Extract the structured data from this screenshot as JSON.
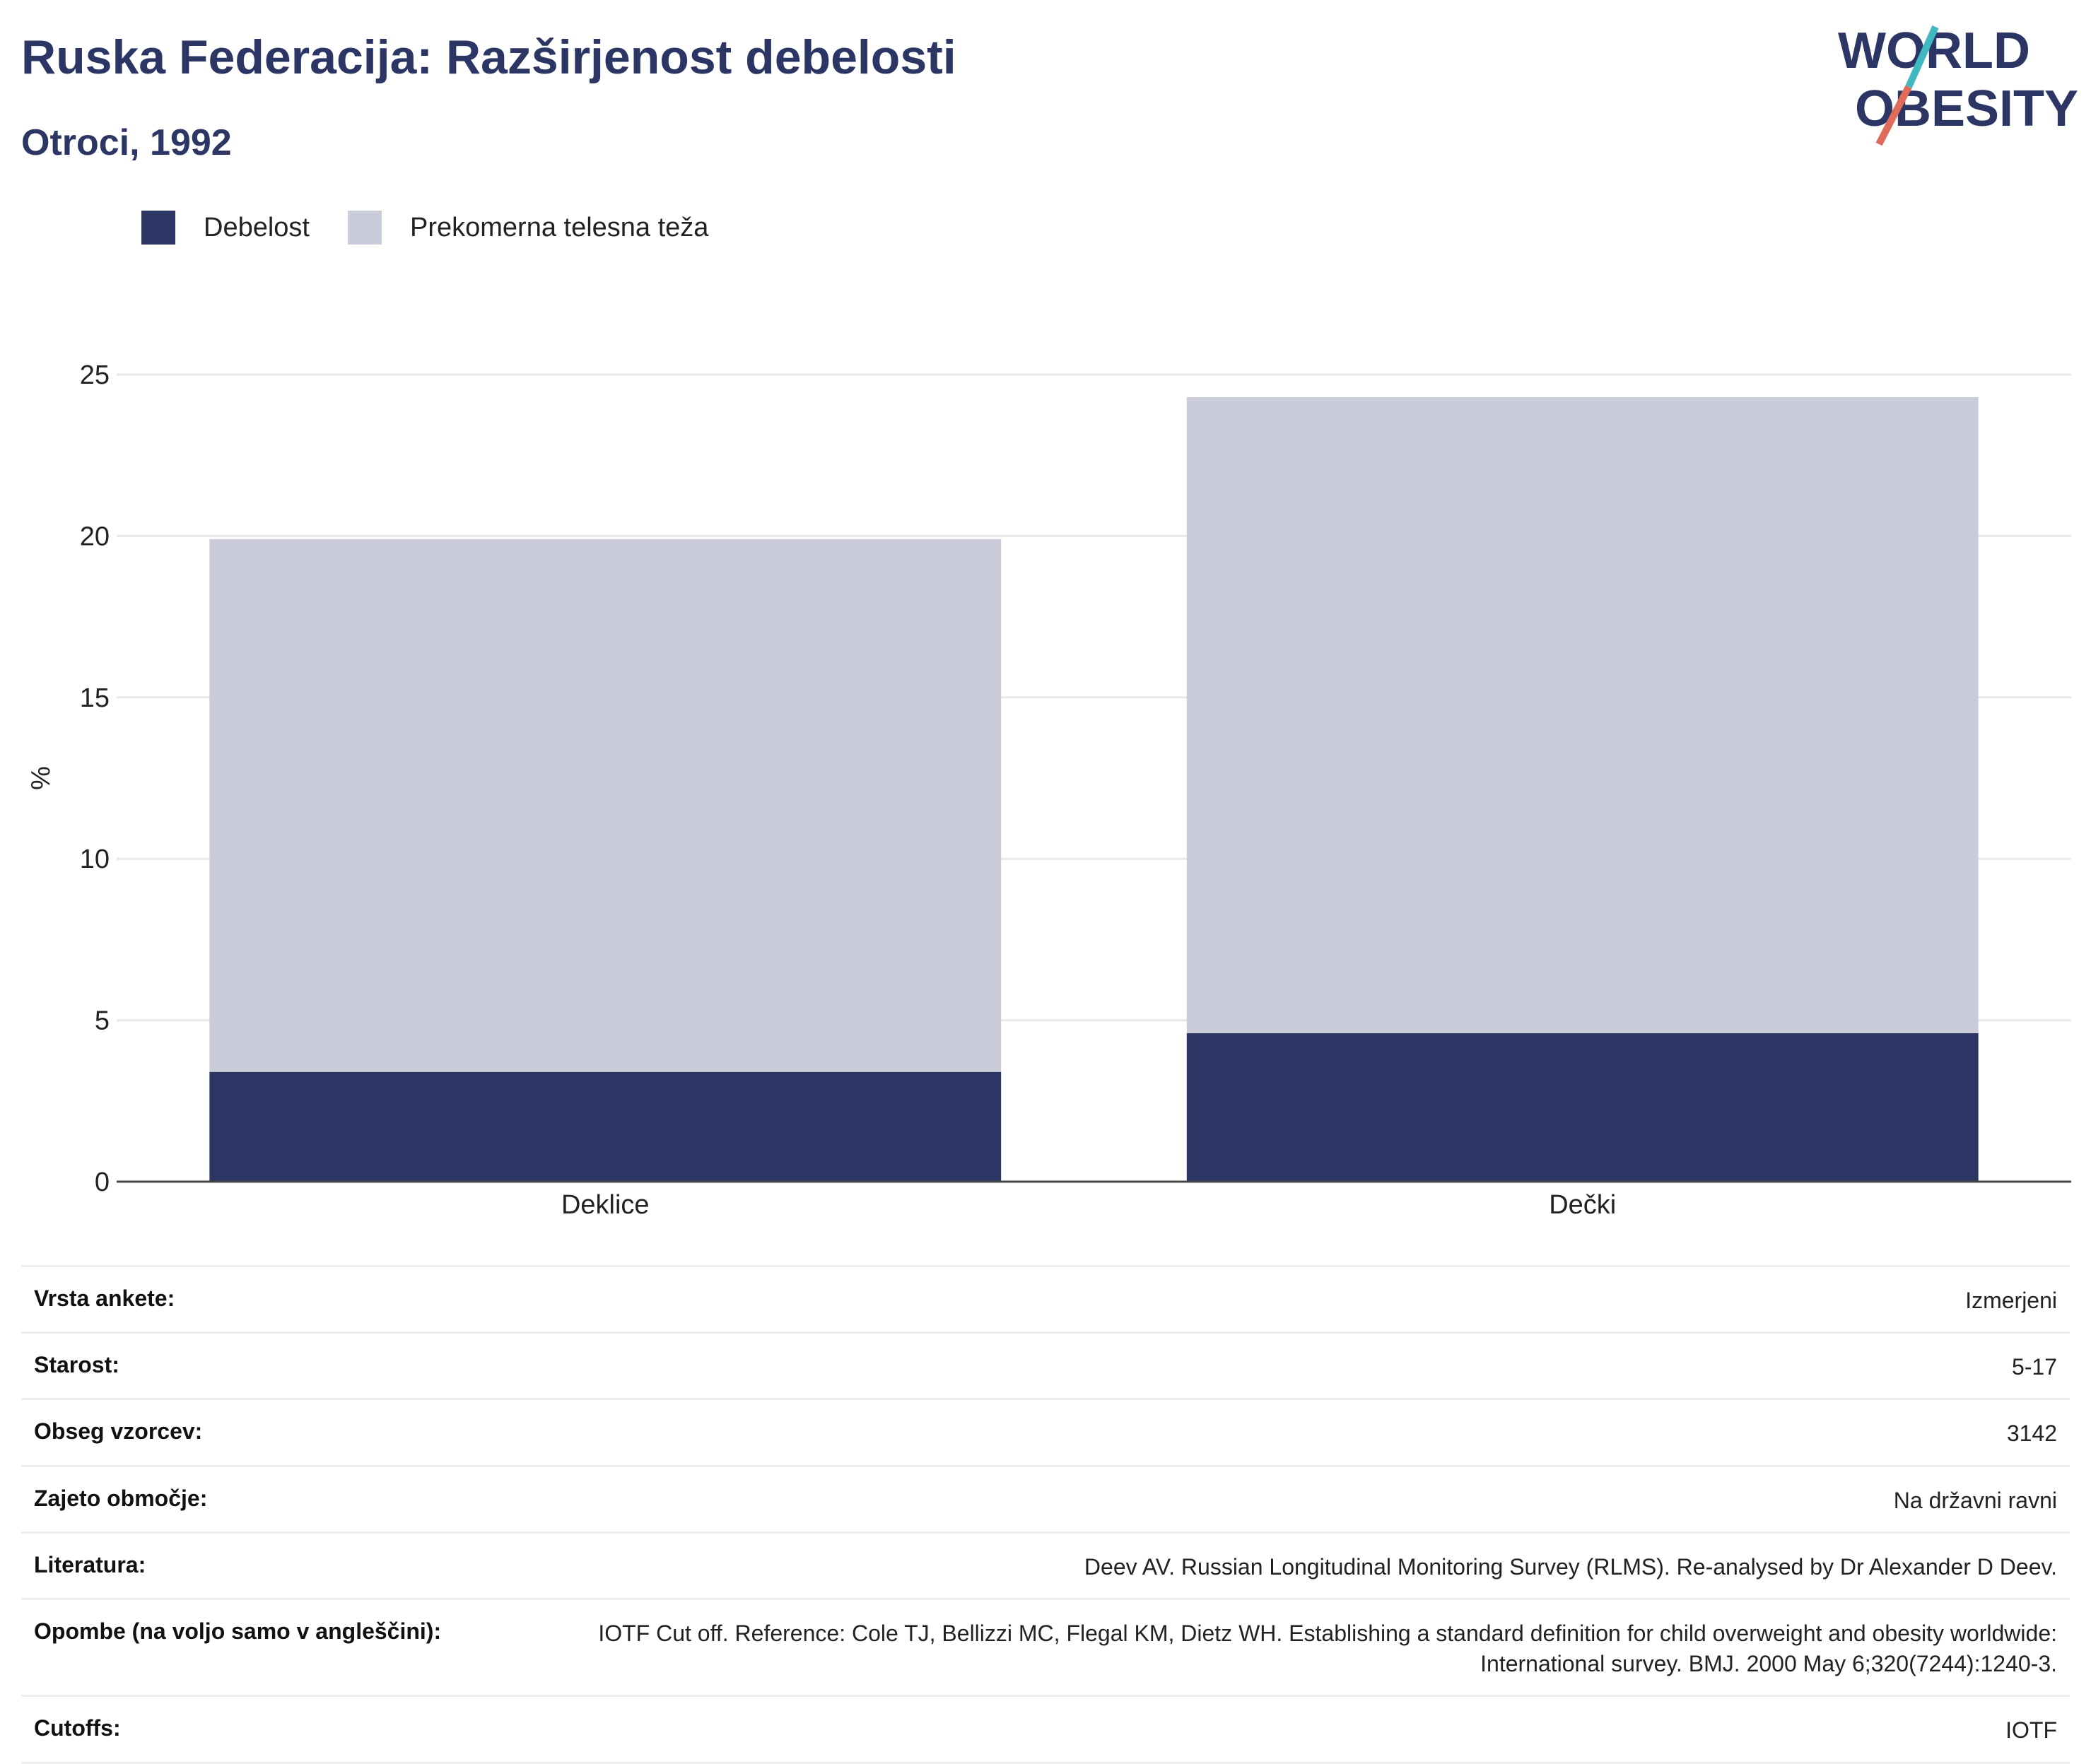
{
  "header": {
    "title": "Ruska Federacija: Razširjenost debelosti",
    "subtitle": "Otroci, 1992"
  },
  "logo": {
    "line1": "WORLD",
    "line2": "OBESITY"
  },
  "colors": {
    "obesity": "#2b3664",
    "overweight": "#cacdd9",
    "title": "#2b3664",
    "logo_teal": "#3fb8c0",
    "logo_coral": "#e06b5b"
  },
  "legend": [
    {
      "label": "Debelost",
      "color": "#2b3664"
    },
    {
      "label": "Prekomerna telesna teža",
      "color": "#cacdd9"
    }
  ],
  "chart_data": {
    "type": "bar",
    "stacked": true,
    "categories": [
      "Deklice",
      "Dečki"
    ],
    "series": [
      {
        "name": "Debelost",
        "values": [
          3.4,
          4.6
        ]
      },
      {
        "name": "Prekomerna telesna teža",
        "values": [
          16.5,
          19.7
        ]
      }
    ],
    "ylabel": "%",
    "ylim": [
      0,
      25
    ],
    "yticks": [
      0,
      5,
      10,
      15,
      20,
      25
    ],
    "grid": true,
    "legend_position": "top-left"
  },
  "info": [
    {
      "key": "Vrsta ankete:",
      "value": "Izmerjeni"
    },
    {
      "key": "Starost:",
      "value": "5-17"
    },
    {
      "key": "Obseg vzorcev:",
      "value": "3142"
    },
    {
      "key": "Zajeto območje:",
      "value": "Na državni ravni"
    },
    {
      "key": "Literatura:",
      "value": "Deev AV. Russian Longitudinal Monitoring Survey (RLMS). Re-analysed by Dr Alexander D Deev."
    },
    {
      "key": "Opombe (na voljo samo v angleščini):",
      "value": "IOTF Cut off. Reference: Cole TJ, Bellizzi MC, Flegal KM, Dietz WH. Establishing a standard definition for child overweight and obesity worldwide: International survey. BMJ. 2000 May 6;320(7244):1240-3."
    },
    {
      "key": "Cutoffs:",
      "value": "IOTF"
    }
  ]
}
